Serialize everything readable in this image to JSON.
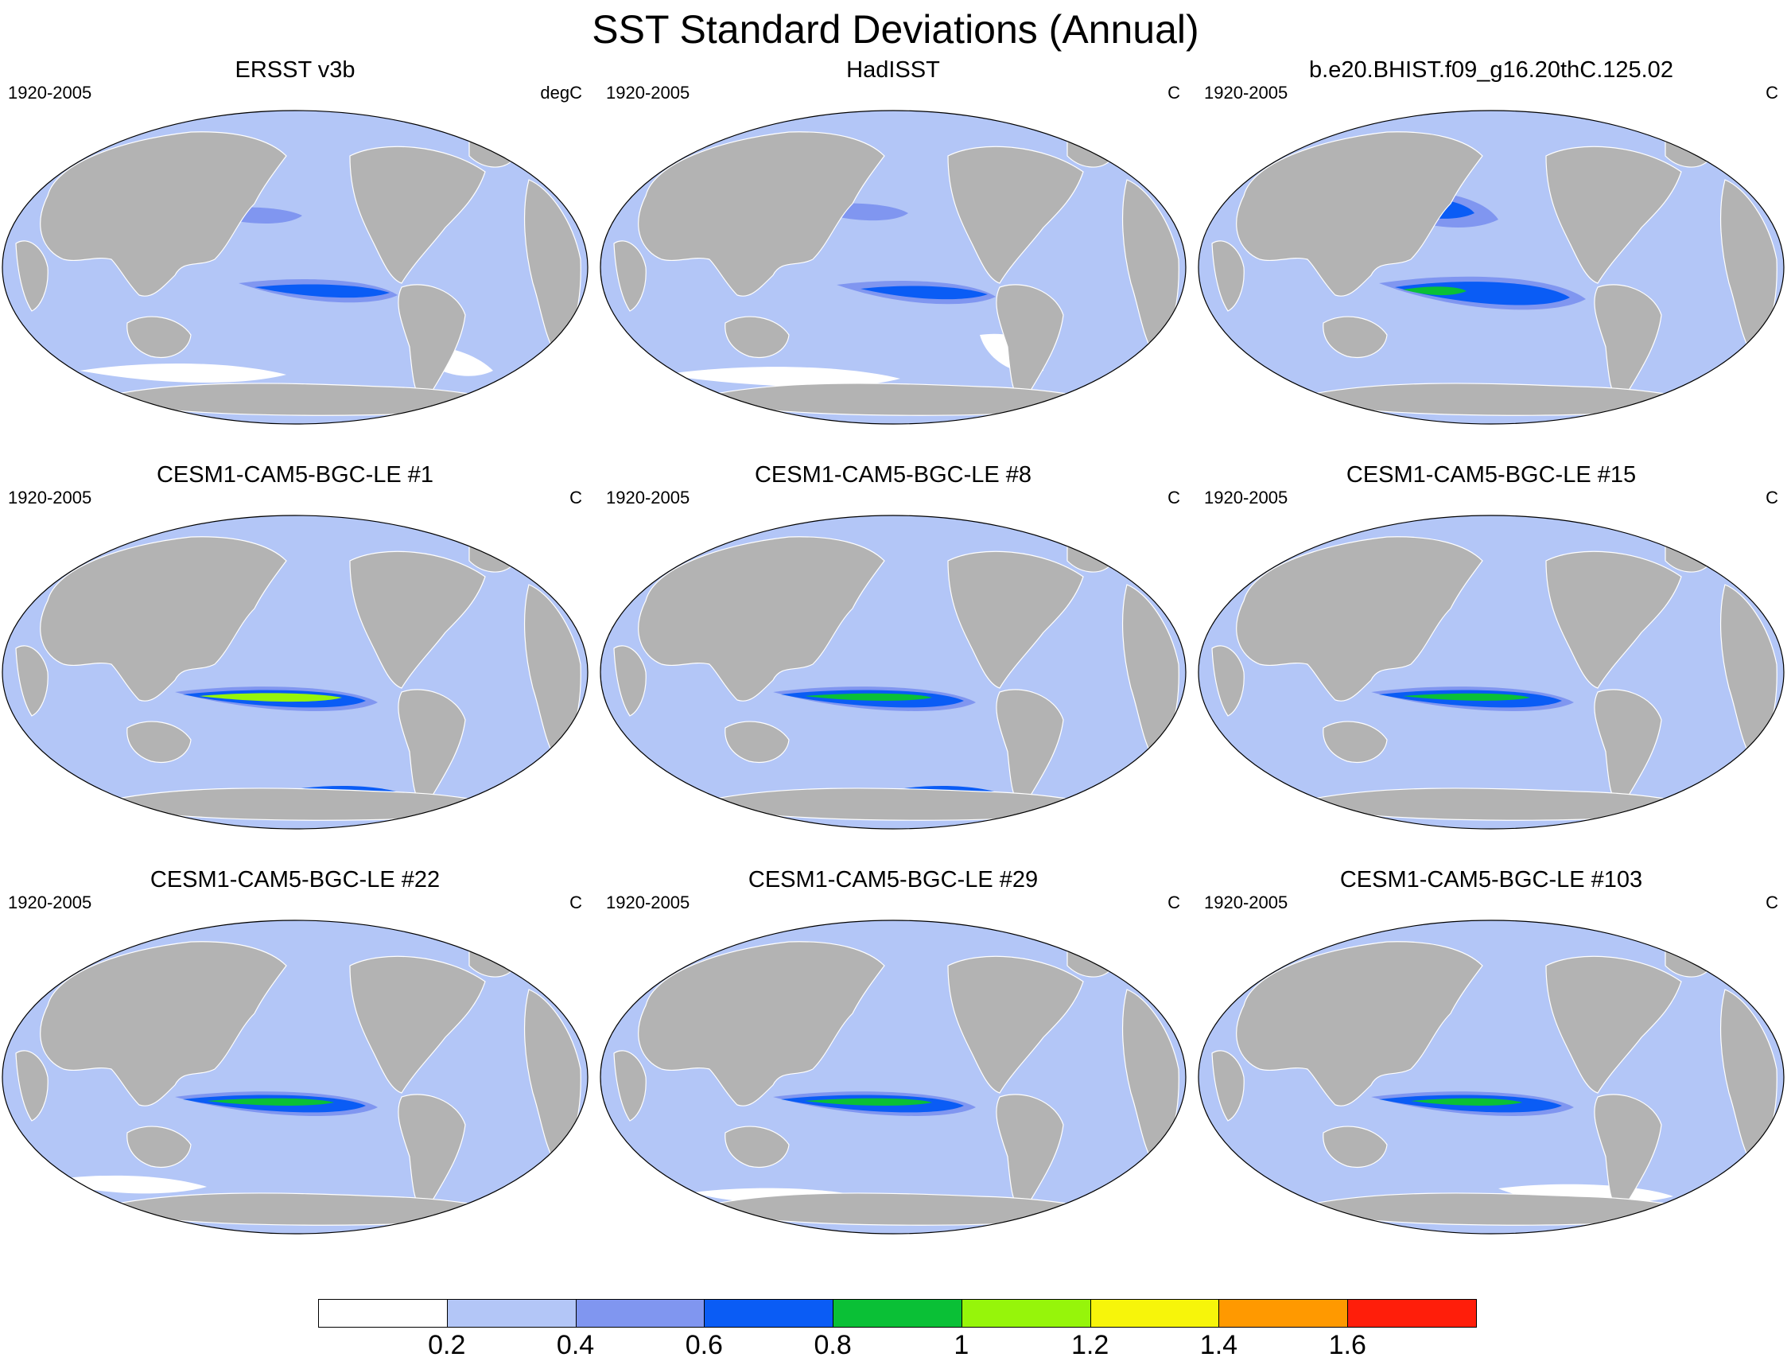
{
  "title": "SST Standard Deviations (Annual)",
  "panels": [
    {
      "title": "ERSST v3b",
      "period": "1920-2005",
      "units": "degC"
    },
    {
      "title": "HadISST",
      "period": "1920-2005",
      "units": "C"
    },
    {
      "title": "b.e20.BHIST.f09_g16.20thC.125.02",
      "period": "1920-2005",
      "units": "C"
    },
    {
      "title": "CESM1-CAM5-BGC-LE #1",
      "period": "1920-2005",
      "units": "C"
    },
    {
      "title": "CESM1-CAM5-BGC-LE #8",
      "period": "1920-2005",
      "units": "C"
    },
    {
      "title": "CESM1-CAM5-BGC-LE #15",
      "period": "1920-2005",
      "units": "C"
    },
    {
      "title": "CESM1-CAM5-BGC-LE #22",
      "period": "1920-2005",
      "units": "C"
    },
    {
      "title": "CESM1-CAM5-BGC-LE #29",
      "period": "1920-2005",
      "units": "C"
    },
    {
      "title": "CESM1-CAM5-BGC-LE #103",
      "period": "1920-2005",
      "units": "C"
    }
  ],
  "colorbar": {
    "labels": [
      "0.2",
      "0.4",
      "0.6",
      "0.8",
      "1",
      "1.2",
      "1.4",
      "1.6"
    ],
    "colors": [
      "#ffffff",
      "#b3c6f7",
      "#8096f0",
      "#0a5cf5",
      "#0ac036",
      "#96f50a",
      "#f7f50a",
      "#ff9900",
      "#ff1e0a"
    ]
  },
  "colors": {
    "land": "#b3b3b3",
    "ocean_low": "#b3c6f7"
  }
}
